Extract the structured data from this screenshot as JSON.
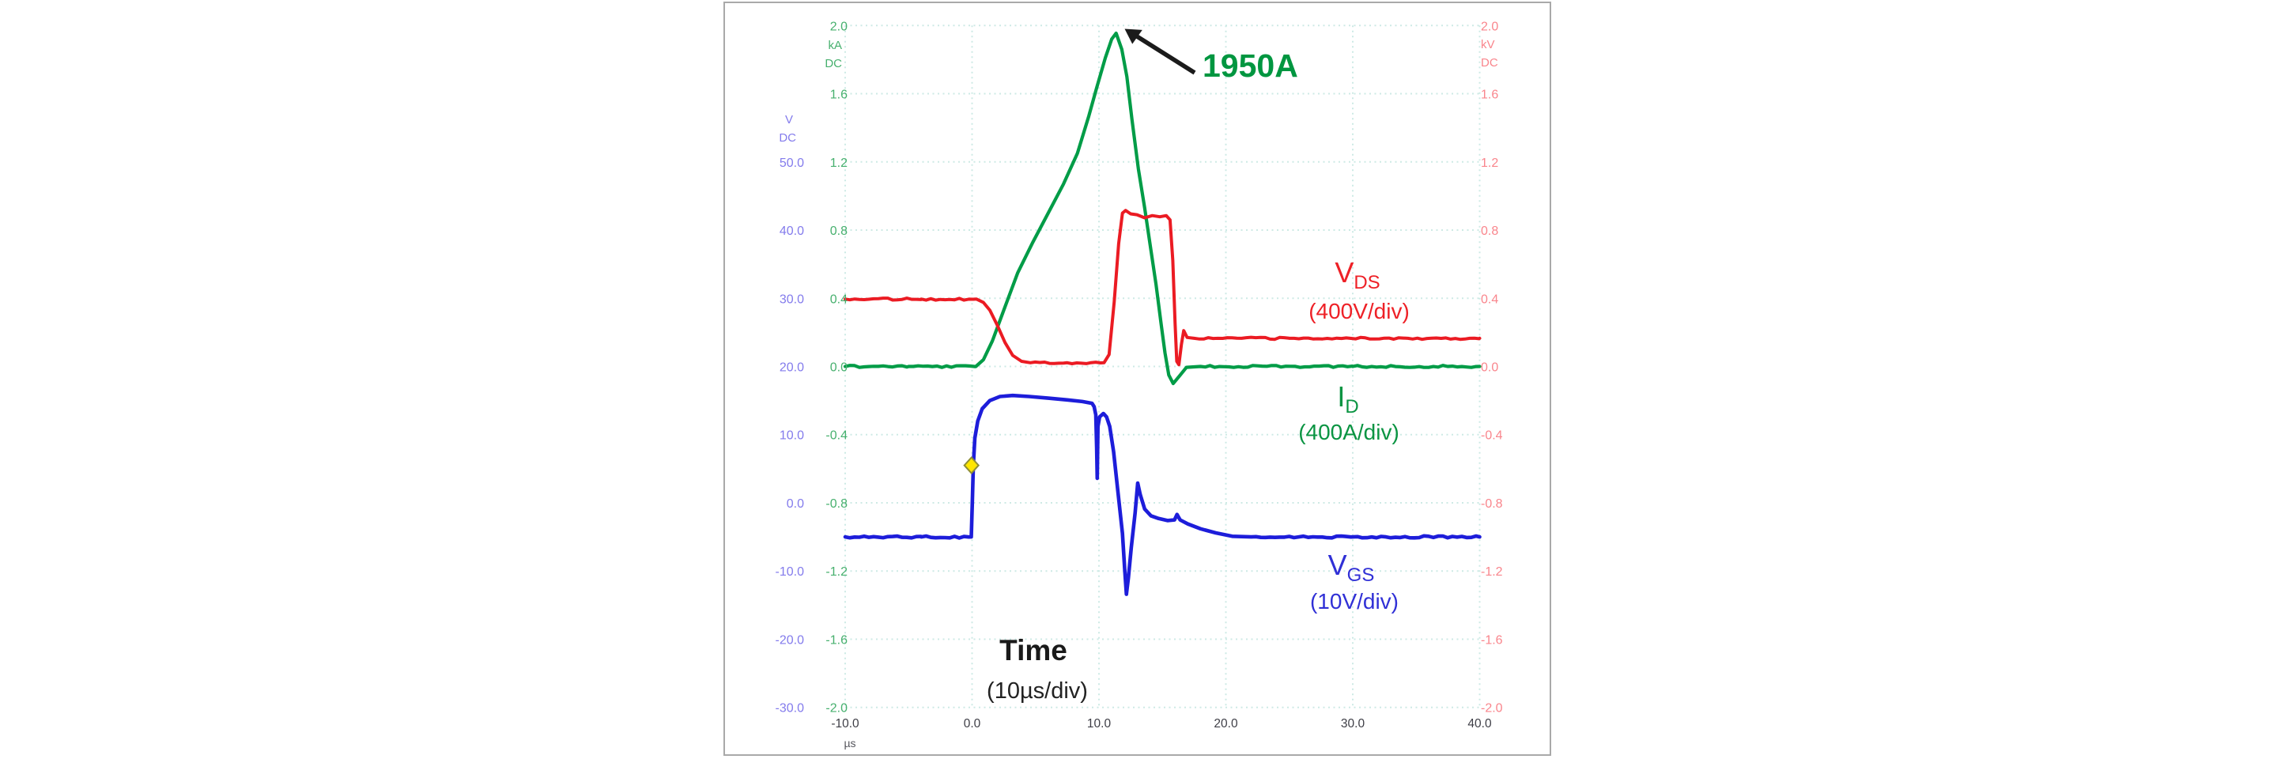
{
  "panel": {
    "border_color": "#a9a9a9",
    "background": "#ffffff"
  },
  "chart_data": {
    "type": "line",
    "title": "",
    "grid": true,
    "grid_color": "#cdeae5",
    "x_axis": {
      "unit": "µs",
      "tick_labels": [
        "-10.0",
        "0.0",
        "10.0",
        "20.0",
        "30.0",
        "40.0"
      ],
      "tick_values_us": [
        -10,
        0,
        10,
        20,
        30,
        40
      ],
      "range_us": [
        -10,
        40
      ],
      "color": "#3e3e46"
    },
    "left_axis_current": {
      "unit_line1": "kA",
      "unit_line2": "DC",
      "tick_labels": [
        "2.0",
        "1.6",
        "1.2",
        "0.8",
        "0.4",
        "0.0",
        "-0.4",
        "-0.8",
        "-1.2",
        "-1.6",
        "-2.0"
      ],
      "tick_values": [
        2.0,
        1.6,
        1.2,
        0.8,
        0.4,
        0.0,
        -0.4,
        -0.8,
        -1.2,
        -1.6,
        -2.0
      ],
      "range": [
        2.0,
        -2.0
      ],
      "color": "#47b06e"
    },
    "left_axis_gate": {
      "unit_line1": "V",
      "unit_line2": "DC",
      "tick_labels": [
        "50.0",
        "40.0",
        "30.0",
        "20.0",
        "10.0",
        "0.0",
        "-10.0",
        "-20.0",
        "-30.0"
      ],
      "tick_values_V": [
        50,
        40,
        30,
        20,
        10,
        0,
        -10,
        -20,
        -30
      ],
      "top_tick_aligns_with_kA": 1.2,
      "color": "#837bec"
    },
    "right_axis_voltage": {
      "unit_line1": "kV",
      "unit_line2": "DC",
      "tick_labels": [
        "2.0",
        "1.6",
        "1.2",
        "0.8",
        "0.4",
        "0.0",
        "-0.4",
        "-0.8",
        "-1.2",
        "-1.6",
        "-2.0"
      ],
      "tick_values": [
        2.0,
        1.6,
        1.2,
        0.8,
        0.4,
        0.0,
        -0.4,
        -0.8,
        -1.2,
        -1.6,
        -2.0
      ],
      "range": [
        2.0,
        -2.0
      ],
      "color": "#f9858c"
    },
    "series": [
      {
        "name": "ID",
        "axis": "kA",
        "color": "#009c47",
        "width": 4.2,
        "points": [
          [
            -10,
            0
          ],
          [
            -5,
            0
          ],
          [
            0.3,
            0
          ],
          [
            0.9,
            0.04
          ],
          [
            1.6,
            0.15
          ],
          [
            2.6,
            0.35
          ],
          [
            3.6,
            0.55
          ],
          [
            4.8,
            0.73
          ],
          [
            6.0,
            0.9
          ],
          [
            7.2,
            1.07
          ],
          [
            8.3,
            1.25
          ],
          [
            9.2,
            1.47
          ],
          [
            9.8,
            1.63
          ],
          [
            10.5,
            1.81
          ],
          [
            11.0,
            1.92
          ],
          [
            11.35,
            1.955
          ],
          [
            11.8,
            1.86
          ],
          [
            12.2,
            1.7
          ],
          [
            12.6,
            1.45
          ],
          [
            13.1,
            1.16
          ],
          [
            13.6,
            0.93
          ],
          [
            14.1,
            0.68
          ],
          [
            14.5,
            0.48
          ],
          [
            14.9,
            0.25
          ],
          [
            15.2,
            0.08
          ],
          [
            15.5,
            -0.05
          ],
          [
            15.85,
            -0.1
          ],
          [
            16.35,
            -0.055
          ],
          [
            16.9,
            -0.005
          ],
          [
            18,
            0
          ],
          [
            30,
            0
          ],
          [
            40,
            0
          ]
        ]
      },
      {
        "name": "VDS",
        "axis": "kV",
        "color": "#eb1b23",
        "width": 4.0,
        "points": [
          [
            -10,
            0.395
          ],
          [
            -4,
            0.395
          ],
          [
            0.35,
            0.395
          ],
          [
            0.9,
            0.375
          ],
          [
            1.4,
            0.33
          ],
          [
            2.0,
            0.24
          ],
          [
            2.6,
            0.14
          ],
          [
            3.2,
            0.065
          ],
          [
            3.9,
            0.03
          ],
          [
            4.6,
            0.022
          ],
          [
            7.5,
            0.022
          ],
          [
            10.4,
            0.022
          ],
          [
            10.8,
            0.07
          ],
          [
            11.2,
            0.38
          ],
          [
            11.55,
            0.72
          ],
          [
            11.85,
            0.9
          ],
          [
            12.1,
            0.915
          ],
          [
            12.5,
            0.895
          ],
          [
            13.0,
            0.89
          ],
          [
            13.6,
            0.872
          ],
          [
            14.2,
            0.885
          ],
          [
            14.8,
            0.878
          ],
          [
            15.3,
            0.885
          ],
          [
            15.6,
            0.86
          ],
          [
            15.82,
            0.62
          ],
          [
            16.0,
            0.25
          ],
          [
            16.13,
            0.03
          ],
          [
            16.3,
            0.01
          ],
          [
            16.5,
            0.13
          ],
          [
            16.68,
            0.21
          ],
          [
            16.95,
            0.17
          ],
          [
            17.5,
            0.165
          ],
          [
            25,
            0.165
          ],
          [
            40,
            0.165
          ]
        ]
      },
      {
        "name": "VGS",
        "axis": "V",
        "color": "#1d1dda",
        "width": 4.6,
        "points": [
          [
            -10,
            -5
          ],
          [
            -4,
            -5
          ],
          [
            -0.06,
            -5
          ],
          [
            0.02,
            0
          ],
          [
            0.1,
            5.5
          ],
          [
            0.22,
            9.5
          ],
          [
            0.45,
            12
          ],
          [
            0.8,
            13.8
          ],
          [
            1.4,
            15
          ],
          [
            2.2,
            15.6
          ],
          [
            3.2,
            15.75
          ],
          [
            4.5,
            15.6
          ],
          [
            6,
            15.35
          ],
          [
            7.5,
            15.1
          ],
          [
            8.7,
            14.85
          ],
          [
            9.45,
            14.6
          ],
          [
            9.62,
            14.1
          ],
          [
            9.75,
            12.9
          ],
          [
            9.82,
            8
          ],
          [
            9.86,
            3.6
          ],
          [
            9.92,
            11.2
          ],
          [
            10.05,
            12.6
          ],
          [
            10.35,
            13.1
          ],
          [
            10.6,
            12.6
          ],
          [
            10.85,
            11.2
          ],
          [
            11.15,
            7.5
          ],
          [
            11.5,
            1.5
          ],
          [
            11.85,
            -4.5
          ],
          [
            12.02,
            -9.5
          ],
          [
            12.16,
            -13.4
          ],
          [
            12.32,
            -11
          ],
          [
            12.55,
            -6.5
          ],
          [
            12.85,
            -1.5
          ],
          [
            13.05,
            2.9
          ],
          [
            13.25,
            1.2
          ],
          [
            13.6,
            -0.9
          ],
          [
            14.1,
            -1.9
          ],
          [
            14.7,
            -2.3
          ],
          [
            15.4,
            -2.6
          ],
          [
            15.95,
            -2.5
          ],
          [
            16.15,
            -1.7
          ],
          [
            16.4,
            -2.5
          ],
          [
            17.0,
            -3.1
          ],
          [
            18.0,
            -3.8
          ],
          [
            19.2,
            -4.4
          ],
          [
            20.5,
            -4.9
          ],
          [
            22,
            -5
          ],
          [
            30,
            -5
          ],
          [
            40,
            -5
          ]
        ]
      }
    ],
    "marker": {
      "series": "VGS",
      "t_us": -0.05,
      "value_V": 5.5,
      "fill": "#ffe600",
      "stroke": "#8e8e35"
    },
    "annotation": {
      "text": "1950A",
      "color": "#009640",
      "points_to": {
        "t_us": 11.35,
        "value_kA": 1.95
      }
    },
    "legend": {
      "vds": {
        "main": "V",
        "sub": "DS",
        "scale": "(400V/div)",
        "color": "#ee2127"
      },
      "id": {
        "main": "I",
        "sub": "D",
        "scale": "(400A/div)",
        "color": "#0a9442"
      },
      "vgs": {
        "main": "V",
        "sub": "GS",
        "scale": "(10V/div)",
        "color": "#3030d6"
      }
    },
    "time_label": {
      "title": "Time",
      "scale": "(10µs/div)",
      "color": "#1a1a1a"
    }
  }
}
